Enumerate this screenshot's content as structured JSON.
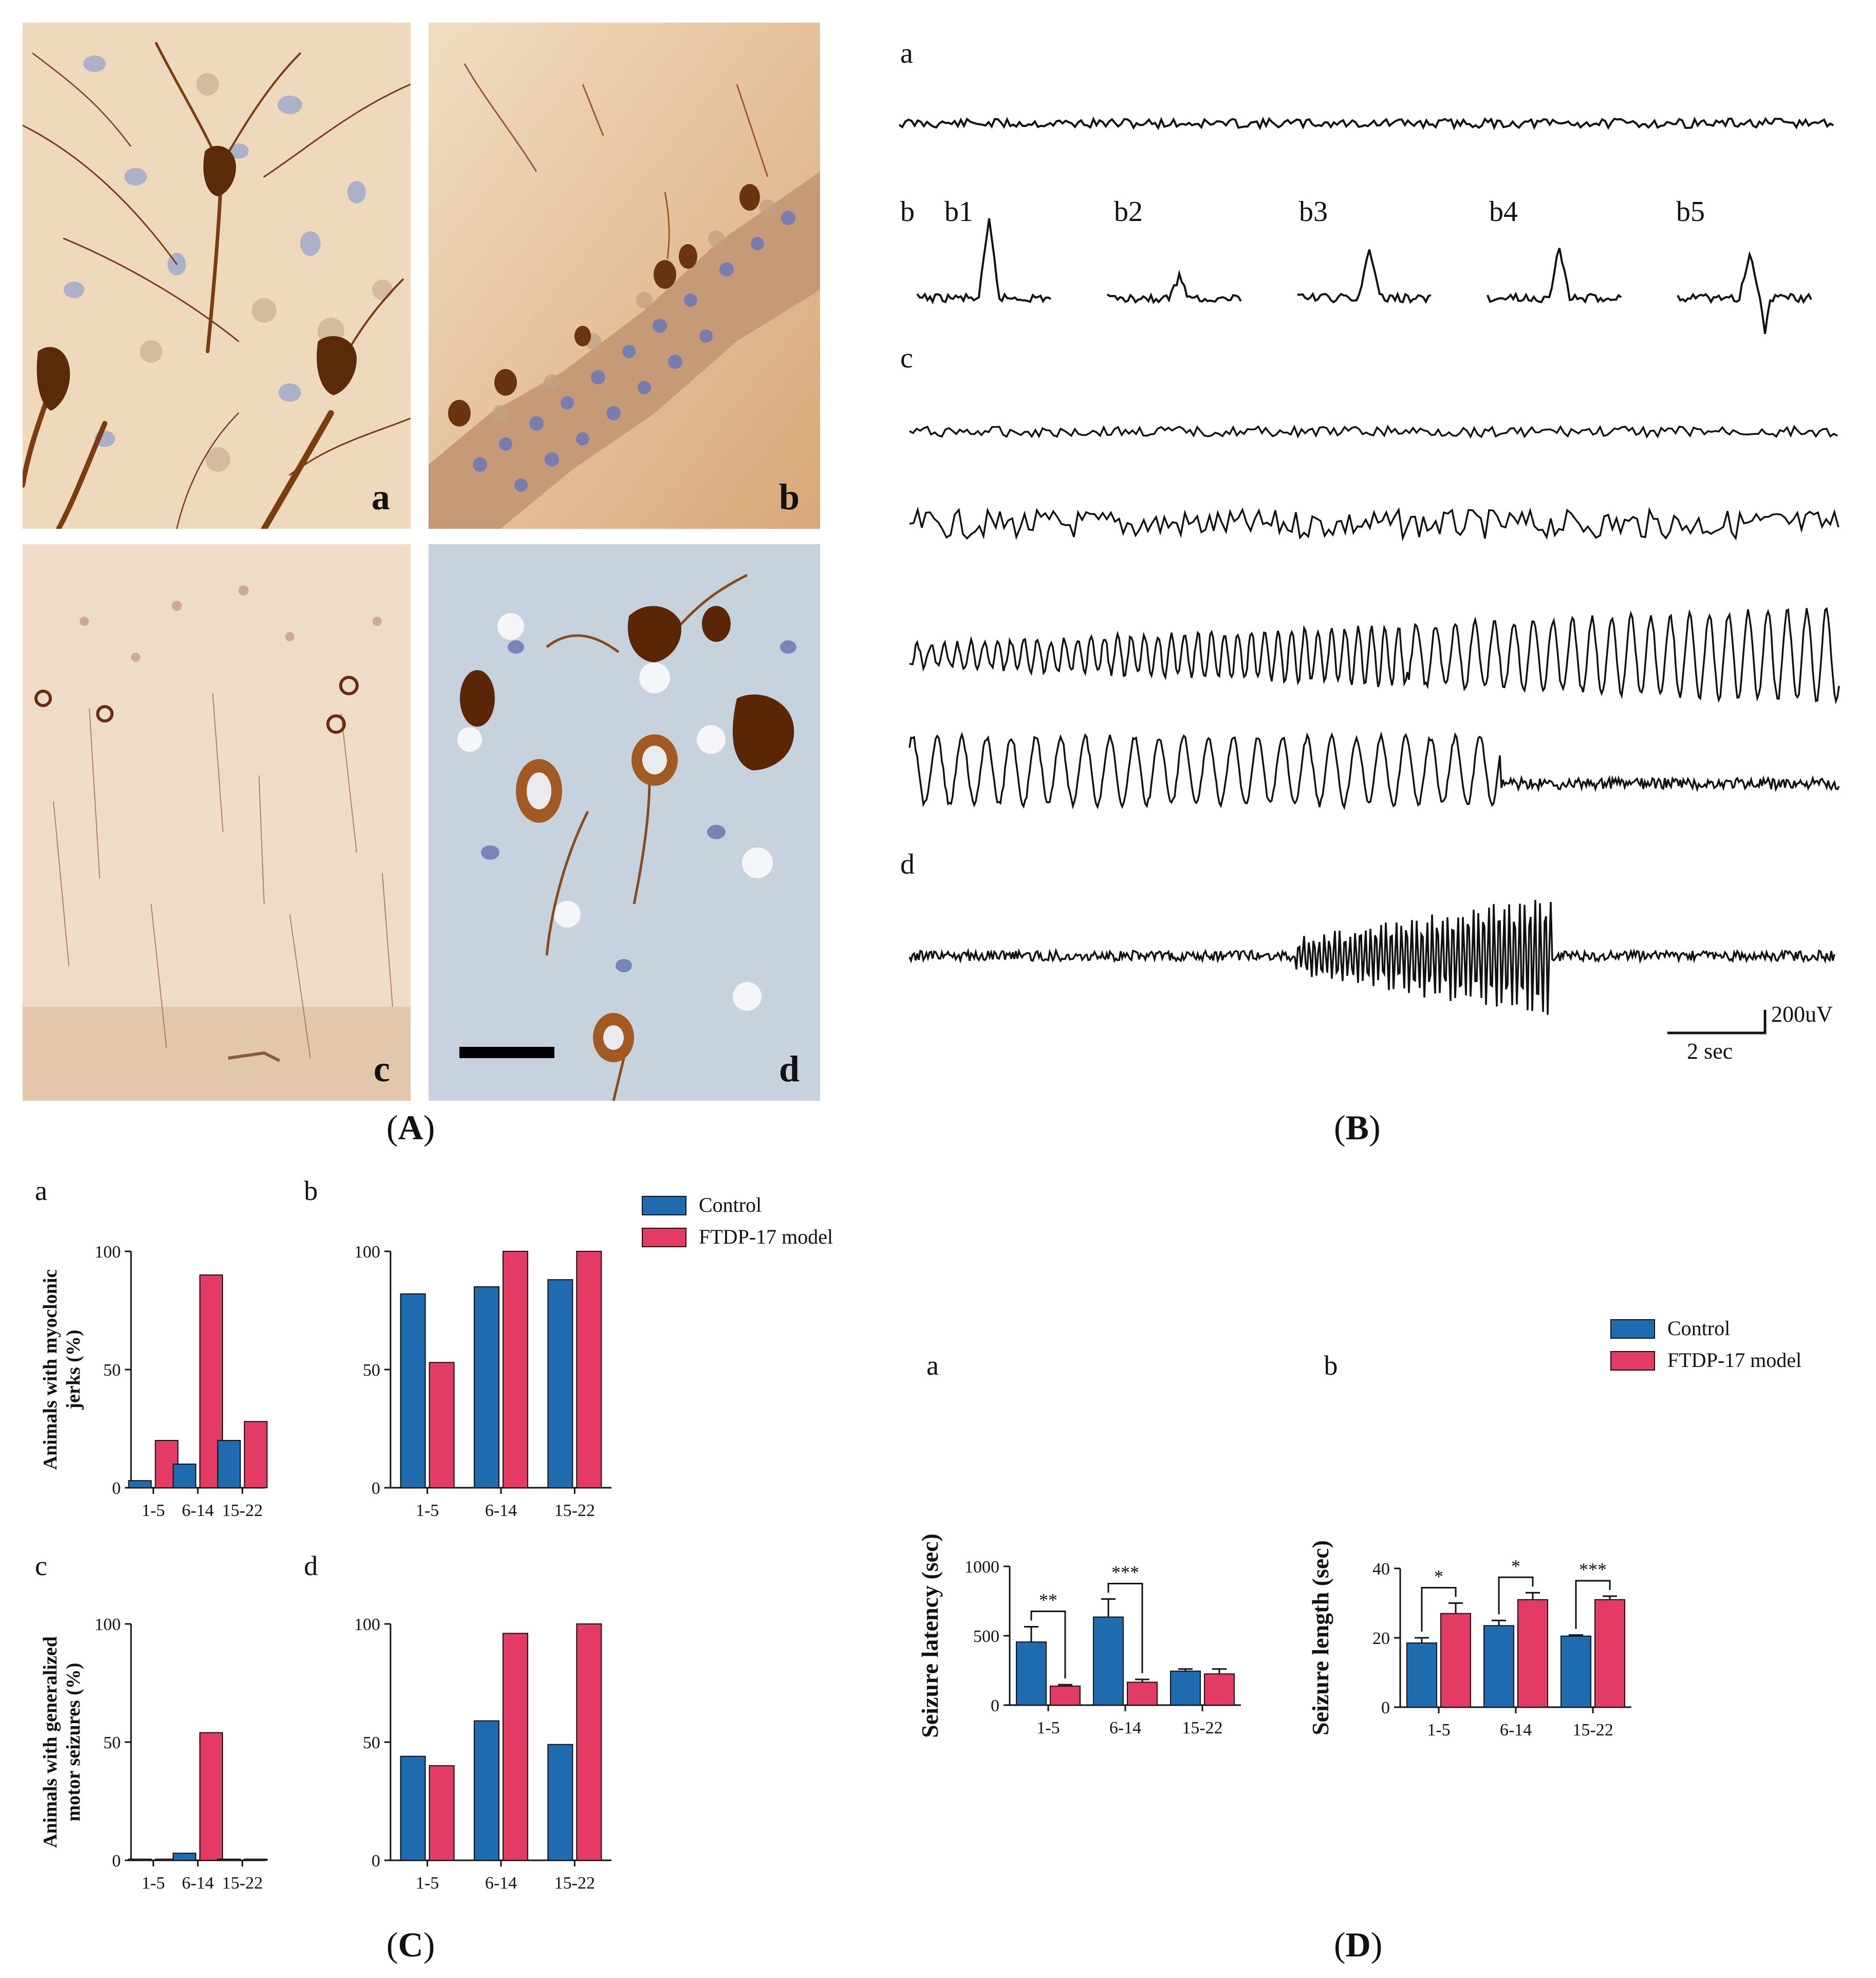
{
  "panels": {
    "A": {
      "label": "A"
    },
    "B": {
      "label": "B"
    },
    "C": {
      "label": "C"
    },
    "D": {
      "label": "D"
    }
  },
  "micrographs": [
    {
      "letter": "a"
    },
    {
      "letter": "b"
    },
    {
      "letter": "c"
    },
    {
      "letter": "d"
    }
  ],
  "eeg": {
    "a": "a",
    "b": "b",
    "b_items": [
      "b1",
      "b2",
      "b3",
      "b4",
      "b5"
    ],
    "c": "c",
    "d": "d",
    "scale_amplitude": "200uV",
    "scale_time": "2 sec"
  },
  "colors": {
    "control": "#1f6bb0",
    "model": "#e43b64",
    "stain_brown": "#7a3d10",
    "tissue": "#e6c7a0"
  },
  "legend": {
    "control": "Control",
    "model": "FTDP-17 model"
  },
  "chart_data": [
    {
      "id": "C-a",
      "panel_letter": "a",
      "type": "bar",
      "categories": [
        "1-5",
        "6-14",
        "15-22"
      ],
      "ylabel": "Animals with myoclonic jerks (%)",
      "ylim": [
        0,
        100
      ],
      "yticks": [
        0,
        50,
        100
      ],
      "series": [
        {
          "name": "Control",
          "values": [
            3,
            10,
            20
          ]
        },
        {
          "name": "FTDP-17 model",
          "values": [
            20,
            90,
            28
          ]
        }
      ]
    },
    {
      "id": "C-b",
      "panel_letter": "b",
      "type": "bar",
      "categories": [
        "1-5",
        "6-14",
        "15-22"
      ],
      "ylim": [
        0,
        100
      ],
      "yticks": [
        0,
        50,
        100
      ],
      "series": [
        {
          "name": "Control",
          "values": [
            82,
            85,
            88
          ]
        },
        {
          "name": "FTDP-17 model",
          "values": [
            53,
            100,
            100
          ]
        }
      ]
    },
    {
      "id": "C-c",
      "panel_letter": "c",
      "type": "bar",
      "categories": [
        "1-5",
        "6-14",
        "15-22"
      ],
      "ylabel": "Animals with generalized motor seizures (%)",
      "ylim": [
        0,
        100
      ],
      "yticks": [
        0,
        50,
        100
      ],
      "series": [
        {
          "name": "Control",
          "values": [
            0.5,
            3,
            0.5
          ]
        },
        {
          "name": "FTDP-17 model",
          "values": [
            0.5,
            54,
            0.5
          ]
        }
      ]
    },
    {
      "id": "C-d",
      "panel_letter": "d",
      "type": "bar",
      "categories": [
        "1-5",
        "6-14",
        "15-22"
      ],
      "ylim": [
        0,
        100
      ],
      "yticks": [
        0,
        50,
        100
      ],
      "series": [
        {
          "name": "Control",
          "values": [
            44,
            59,
            49
          ]
        },
        {
          "name": "FTDP-17 model",
          "values": [
            40,
            96,
            100
          ]
        }
      ]
    },
    {
      "id": "D-a",
      "panel_letter": "a",
      "type": "bar",
      "categories": [
        "1-5",
        "6-14",
        "15-22"
      ],
      "ylabel": "Seizure latency (sec)",
      "ylim": [
        0,
        1000
      ],
      "yticks": [
        0,
        500,
        1000
      ],
      "series": [
        {
          "name": "Control",
          "values": [
            455,
            635,
            245
          ],
          "errors": [
            110,
            130,
            15
          ]
        },
        {
          "name": "FTDP-17 model",
          "values": [
            137,
            165,
            225
          ],
          "errors": [
            10,
            20,
            35
          ]
        }
      ],
      "significance": [
        "**",
        "***",
        ""
      ]
    },
    {
      "id": "D-b",
      "panel_letter": "b",
      "type": "bar",
      "categories": [
        "1-5",
        "6-14",
        "15-22"
      ],
      "ylabel": "Seizure length (sec)",
      "ylim": [
        0,
        40
      ],
      "yticks": [
        0,
        20,
        40
      ],
      "series": [
        {
          "name": "Control",
          "values": [
            18.5,
            23.5,
            20.5
          ],
          "errors": [
            1.5,
            1.5,
            0.3
          ]
        },
        {
          "name": "FTDP-17 model",
          "values": [
            27,
            31,
            31
          ],
          "errors": [
            3,
            2,
            1
          ]
        }
      ],
      "significance": [
        "*",
        "*",
        "***"
      ]
    }
  ]
}
